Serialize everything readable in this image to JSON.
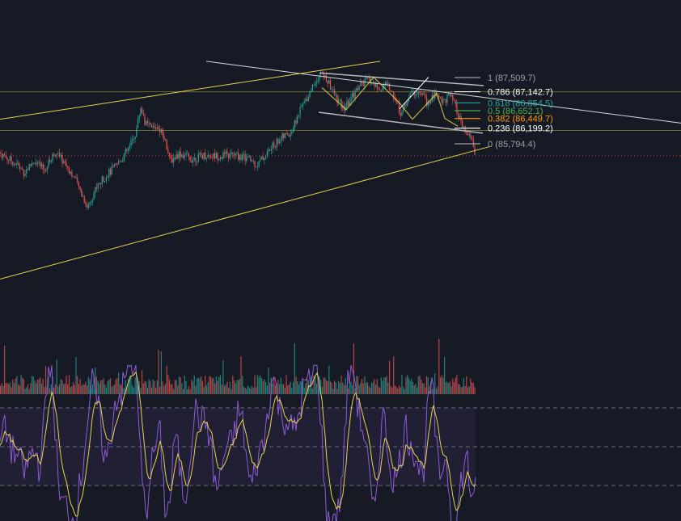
{
  "chart_data": {
    "type": "candlestick",
    "theme": {
      "background": "#161a25",
      "bull": "#26a69a",
      "bear": "#ef5350",
      "rsi_line": "#8e5bd8",
      "rsi_ma": "#e5d54a",
      "trend_white": "#d8d8d8",
      "trend_yellow": "#e5d54a",
      "horizontal_level": "#6b6a2a",
      "current_price_line": "#ef5350"
    },
    "price_axis": {
      "min": 85500,
      "max": 87850
    },
    "fib_levels": [
      {
        "ratio": 1,
        "label": "1 (87,509.7)",
        "price": 87509.7,
        "color": "#9e9e9e"
      },
      {
        "ratio": 0.786,
        "label": "0.786 (87,142.7)",
        "price": 87142.7,
        "color": "#ffffff"
      },
      {
        "ratio": 0.618,
        "label": "0.618 (86,854.5)",
        "price": 86854.5,
        "color": "#26a69a"
      },
      {
        "ratio": 0.5,
        "label": "0.5 (86,652.1)",
        "price": 86652.1,
        "color": "#4caf50"
      },
      {
        "ratio": 0.382,
        "label": "0.382 (86,449.7)",
        "price": 86449.7,
        "color": "#ff9800"
      },
      {
        "ratio": 0.236,
        "label": "0.236 (86,199.2)",
        "price": 86199.2,
        "color": "#ffffff"
      },
      {
        "ratio": 0,
        "label": "0 (85,794.4)",
        "price": 85794.4,
        "color": "#9e9e9e"
      }
    ],
    "horizontal_levels": [
      87140,
      86140
    ],
    "current_price": 85480,
    "price_path": [
      [
        0,
        85550
      ],
      [
        18,
        85300
      ],
      [
        30,
        85050
      ],
      [
        42,
        85350
      ],
      [
        55,
        85100
      ],
      [
        68,
        85580
      ],
      [
        82,
        85250
      ],
      [
        92,
        84900
      ],
      [
        100,
        84550
      ],
      [
        108,
        84150
      ],
      [
        118,
        84620
      ],
      [
        130,
        84950
      ],
      [
        145,
        85250
      ],
      [
        160,
        85700
      ],
      [
        168,
        86100
      ],
      [
        174,
        86750
      ],
      [
        180,
        86300
      ],
      [
        188,
        86200
      ],
      [
        196,
        86250
      ],
      [
        204,
        85950
      ],
      [
        210,
        85350
      ],
      [
        222,
        85550
      ],
      [
        238,
        85400
      ],
      [
        252,
        85500
      ],
      [
        270,
        85480
      ],
      [
        290,
        85500
      ],
      [
        308,
        85400
      ],
      [
        318,
        85250
      ],
      [
        330,
        85550
      ],
      [
        345,
        85900
      ],
      [
        360,
        86100
      ],
      [
        372,
        86700
      ],
      [
        382,
        87100
      ],
      [
        396,
        87650
      ],
      [
        404,
        87450
      ],
      [
        414,
        87050
      ],
      [
        424,
        86700
      ],
      [
        432,
        86900
      ],
      [
        444,
        87300
      ],
      [
        456,
        87450
      ],
      [
        468,
        87200
      ],
      [
        478,
        87350
      ],
      [
        488,
        87000
      ],
      [
        496,
        86550
      ],
      [
        506,
        87050
      ],
      [
        516,
        87150
      ],
      [
        524,
        87000
      ],
      [
        530,
        86800
      ],
      [
        538,
        87100
      ],
      [
        548,
        86900
      ],
      [
        556,
        87050
      ],
      [
        562,
        86800
      ],
      [
        570,
        86300
      ],
      [
        578,
        86000
      ],
      [
        584,
        85900
      ],
      [
        588,
        85450
      ]
    ],
    "rsi": {
      "min": 0,
      "max": 100,
      "upper_band": 70,
      "lower_band": 30
    },
    "drawings": {
      "white_trendline": {
        "from": [
          255,
          87930
        ],
        "to": [
          842,
          86330
        ]
      },
      "yellow_channel_upper": {
        "from": [
          0,
          86430
        ],
        "to": [
          470,
          87930
        ]
      },
      "yellow_channel_lower": {
        "from": [
          0,
          82290
        ],
        "to": [
          605,
          85720
        ]
      },
      "descending_channel_top": {
        "from": [
          395,
          87630
        ],
        "to": [
          598,
          87300
        ]
      },
      "descending_channel_bottom": {
        "from": [
          394,
          86610
        ],
        "to": [
          597,
          86070
        ]
      }
    }
  }
}
